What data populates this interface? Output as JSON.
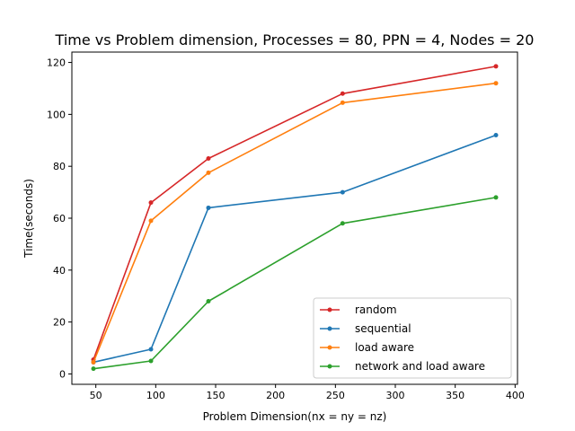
{
  "chart_data": {
    "type": "line",
    "title": "Time vs Problem dimension, Processes = 80, PPN = 4, Nodes = 20",
    "xlabel": "Problem Dimension(nx = ny = nz)",
    "ylabel": "Time(seconds)",
    "xlim": [
      30,
      402
    ],
    "ylim": [
      -4,
      124
    ],
    "xticks": [
      50,
      100,
      150,
      200,
      250,
      300,
      350,
      400
    ],
    "yticks": [
      0,
      20,
      40,
      60,
      80,
      100,
      120
    ],
    "grid": false,
    "legend_position": "lower-right",
    "x": [
      48,
      96,
      144,
      256,
      384
    ],
    "series": [
      {
        "name": "random",
        "color": "#d62728",
        "values": [
          5.5,
          66,
          83,
          108,
          118.5
        ]
      },
      {
        "name": "sequential",
        "color": "#1f77b4",
        "values": [
          4.5,
          9.5,
          64,
          70,
          92
        ]
      },
      {
        "name": "load aware",
        "color": "#ff7f0e",
        "values": [
          4.5,
          59,
          77.5,
          104.5,
          112
        ]
      },
      {
        "name": "network and load aware",
        "color": "#2ca02c",
        "values": [
          2,
          5,
          28,
          58,
          68
        ]
      }
    ]
  }
}
